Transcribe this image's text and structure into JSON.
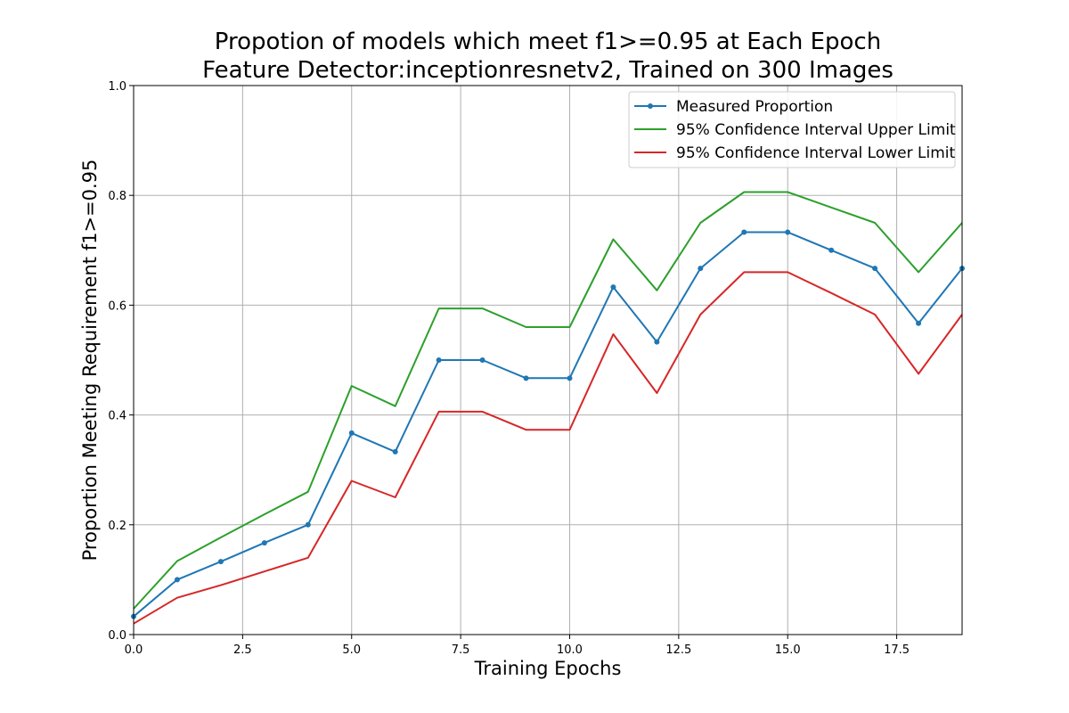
{
  "chart_data": {
    "type": "line",
    "title": "Propotion of models which meet f1>=0.95 at Each Epoch",
    "subtitle": "Feature Detector:inceptionresnetv2, Trained on 300 Images",
    "xlabel": "Training Epochs",
    "ylabel": "Proportion Meeting Requirement f1>=0.95",
    "xlim": [
      0,
      19
    ],
    "ylim": [
      0,
      1.0
    ],
    "xticks": [
      "0.0",
      "2.5",
      "5.0",
      "7.5",
      "10.0",
      "12.5",
      "15.0",
      "17.5"
    ],
    "yticks": [
      "0.0",
      "0.2",
      "0.4",
      "0.6",
      "0.8",
      "1.0"
    ],
    "grid": true,
    "legend_position": "top-right",
    "x": [
      0,
      1,
      2,
      3,
      4,
      5,
      6,
      7,
      8,
      9,
      10,
      11,
      12,
      13,
      14,
      15,
      16,
      17,
      18,
      19
    ],
    "series": [
      {
        "name": "Measured Proportion",
        "color": "#1f77b4",
        "marker": true,
        "values": [
          0.033,
          0.1,
          0.133,
          0.167,
          0.2,
          0.367,
          0.333,
          0.5,
          0.5,
          0.467,
          0.467,
          0.633,
          0.533,
          0.667,
          0.733,
          0.733,
          0.7,
          0.667,
          0.567,
          0.667
        ]
      },
      {
        "name": "95% Confidence Interval Upper Limit",
        "color": "#2ca02c",
        "marker": false,
        "values": [
          0.047,
          0.134,
          0.177,
          0.219,
          0.26,
          0.453,
          0.416,
          0.594,
          0.594,
          0.56,
          0.56,
          0.72,
          0.627,
          0.75,
          0.806,
          0.806,
          0.778,
          0.75,
          0.66,
          0.75
        ]
      },
      {
        "name": "95% Confidence Interval Lower Limit",
        "color": "#d62728",
        "marker": false,
        "values": [
          0.02,
          0.067,
          0.09,
          0.115,
          0.14,
          0.28,
          0.25,
          0.406,
          0.406,
          0.373,
          0.373,
          0.547,
          0.44,
          0.583,
          0.66,
          0.66,
          0.622,
          0.583,
          0.475,
          0.583
        ]
      }
    ]
  }
}
